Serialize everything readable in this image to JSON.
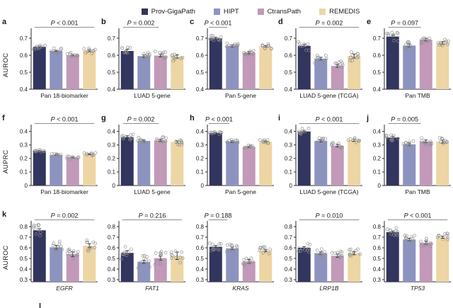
{
  "legend": {
    "items": [
      {
        "label": "Prov-GigaPath",
        "color": "#32355d"
      },
      {
        "label": "HIPT",
        "color": "#8d93bf"
      },
      {
        "label": "CtransPath",
        "color": "#c299b9"
      },
      {
        "label": "REMEDIS",
        "color": "#edd5a4"
      }
    ]
  },
  "colors": {
    "series": [
      "#32355d",
      "#8d93bf",
      "#c299b9",
      "#edd5a4"
    ],
    "axis": "#2a2a2a",
    "p_line": "#8f8f8f",
    "error_bar": "#3a3a3a",
    "scatter": "#8f8f8f"
  },
  "series": [
    "Prov-GigaPath",
    "HIPT",
    "CtransPath",
    "REMEDIS"
  ],
  "footer": {
    "partial_label": "l"
  },
  "chart_data": [
    {
      "type": "bar",
      "letter": "a",
      "ylabel": "AUROC",
      "category": "Pan 18-biomarker",
      "category_italic": false,
      "p": "P < 0.001",
      "p_span": [
        0.05,
        0.95
      ],
      "ylim": [
        0.4,
        0.75
      ],
      "yticks": [
        "0.4",
        "0.5",
        "0.6",
        "0.7"
      ],
      "values": [
        0.65,
        0.625,
        0.6,
        0.627
      ],
      "errors": [
        0.005,
        0.004,
        0.004,
        0.006
      ],
      "spread": 0.035,
      "n_points": 9
    },
    {
      "type": "bar",
      "letter": "b",
      "ylabel": "",
      "category": "LUAD 5-gene",
      "category_italic": false,
      "p": "P = 0.002",
      "p_span": [
        0.06,
        0.6
      ],
      "ylim": [
        0.4,
        0.75
      ],
      "yticks": [
        "0.4",
        "0.5",
        "0.6",
        "0.7"
      ],
      "values": [
        0.625,
        0.595,
        0.598,
        0.593
      ],
      "errors": [
        0.01,
        0.007,
        0.008,
        0.01
      ],
      "spread": 0.055,
      "n_points": 9
    },
    {
      "type": "bar",
      "letter": "c",
      "ylabel": "",
      "category": "Pan 5-gene",
      "category_italic": false,
      "p": "P < 0.001",
      "p_span": [
        0.02,
        0.3
      ],
      "ylim": [
        0.4,
        0.75
      ],
      "yticks": [
        "0.4",
        "0.5",
        "0.6",
        "0.7"
      ],
      "values": [
        0.7,
        0.655,
        0.615,
        0.652
      ],
      "errors": [
        0.006,
        0.006,
        0.007,
        0.005
      ],
      "spread": 0.03,
      "n_points": 10
    },
    {
      "type": "bar",
      "letter": "d",
      "ylabel": "",
      "category": "LUAD 5-gene (TCGA)",
      "category_italic": false,
      "p": "P = 0.002",
      "p_span": [
        0.05,
        0.95
      ],
      "ylim": [
        0.4,
        0.75
      ],
      "yticks": [
        "0.4",
        "0.5",
        "0.6",
        "0.7"
      ],
      "values": [
        0.655,
        0.58,
        0.537,
        0.595
      ],
      "errors": [
        0.008,
        0.008,
        0.009,
        0.012
      ],
      "spread": 0.055,
      "n_points": 9
    },
    {
      "type": "bar",
      "letter": "e",
      "ylabel": "",
      "category": "Pan TMB",
      "category_italic": false,
      "p": "P = 0.097",
      "p_span": [
        0.06,
        0.55
      ],
      "ylim": [
        0.4,
        0.75
      ],
      "yticks": [
        "0.4",
        "0.5",
        "0.6",
        "0.7"
      ],
      "values": [
        0.71,
        0.657,
        0.692,
        0.672
      ],
      "errors": [
        0.008,
        0.009,
        0.008,
        0.008
      ],
      "spread": 0.055,
      "n_points": 10
    },
    {
      "type": "bar",
      "letter": "f",
      "ylabel": "AUPRC",
      "category": "Pan 18-biomarker",
      "category_italic": false,
      "p": "P < 0.001",
      "p_span": [
        0.05,
        0.95
      ],
      "ylim": [
        0,
        0.44
      ],
      "yticks": [
        "0",
        "0.1",
        "0.2",
        "0.3",
        "0.4"
      ],
      "values": [
        0.255,
        0.226,
        0.206,
        0.232
      ],
      "errors": [
        0.004,
        0.004,
        0.004,
        0.004
      ],
      "spread": 0.02,
      "n_points": 9
    },
    {
      "type": "bar",
      "letter": "g",
      "ylabel": "",
      "category": "LUAD 5-gene",
      "category_italic": false,
      "p": "P = 0.002",
      "p_span": [
        0.06,
        0.6
      ],
      "ylim": [
        0,
        0.44
      ],
      "yticks": [
        "0",
        "0.1",
        "0.2",
        "0.3",
        "0.4"
      ],
      "values": [
        0.358,
        0.33,
        0.333,
        0.322
      ],
      "errors": [
        0.01,
        0.007,
        0.008,
        0.008
      ],
      "spread": 0.05,
      "n_points": 9
    },
    {
      "type": "bar",
      "letter": "h",
      "ylabel": "",
      "category": "Pan 5-gene",
      "category_italic": false,
      "p": "P < 0.001",
      "p_span": [
        0.02,
        0.33
      ],
      "ylim": [
        0,
        0.44
      ],
      "yticks": [
        "0",
        "0.1",
        "0.2",
        "0.3",
        "0.4"
      ],
      "values": [
        0.388,
        0.325,
        0.285,
        0.325
      ],
      "errors": [
        0.005,
        0.006,
        0.005,
        0.005
      ],
      "spread": 0.025,
      "n_points": 9
    },
    {
      "type": "bar",
      "letter": "i",
      "ylabel": "",
      "category": "LUAD 5-gene (TCGA)",
      "category_italic": false,
      "p": "P < 0.001",
      "p_span": [
        0.05,
        0.95
      ],
      "ylim": [
        0,
        0.44
      ],
      "yticks": [
        "0",
        "0.1",
        "0.2",
        "0.3",
        "0.4"
      ],
      "values": [
        0.4,
        0.33,
        0.295,
        0.335
      ],
      "errors": [
        0.008,
        0.008,
        0.01,
        0.008
      ],
      "spread": 0.045,
      "n_points": 9
    },
    {
      "type": "bar",
      "letter": "j",
      "ylabel": "",
      "category": "Pan TMB",
      "category_italic": false,
      "p": "P = 0.005",
      "p_span": [
        0.06,
        0.55
      ],
      "ylim": [
        0,
        0.44
      ],
      "yticks": [
        "0",
        "0.1",
        "0.2",
        "0.3",
        "0.4"
      ],
      "values": [
        0.355,
        0.305,
        0.327,
        0.325
      ],
      "errors": [
        0.01,
        0.01,
        0.01,
        0.012
      ],
      "spread": 0.06,
      "n_points": 10
    },
    {
      "type": "bar",
      "letter": "k",
      "ylabel": "AUROC",
      "category": "EGFR",
      "category_italic": true,
      "p": "P = 0.002",
      "p_span": [
        0.05,
        0.95
      ],
      "ylim": [
        0.28,
        0.84
      ],
      "yticks": [
        "0.3",
        "0.4",
        "0.5",
        "0.6",
        "0.7",
        "0.8"
      ],
      "values": [
        0.765,
        0.605,
        0.54,
        0.62
      ],
      "errors": [
        0.015,
        0.018,
        0.022,
        0.018
      ],
      "spread": 0.11,
      "n_points": 10
    },
    {
      "type": "bar",
      "letter": "",
      "ylabel": "",
      "category": "FAT1",
      "category_italic": true,
      "p": "P = 0.216",
      "p_span": [
        0.05,
        0.95
      ],
      "ylim": [
        0.28,
        0.84
      ],
      "yticks": [
        "0.3",
        "0.4",
        "0.5",
        "0.6",
        "0.7",
        "0.8"
      ],
      "values": [
        0.552,
        0.468,
        0.503,
        0.525
      ],
      "errors": [
        0.022,
        0.015,
        0.02,
        0.035
      ],
      "spread": 0.13,
      "n_points": 10
    },
    {
      "type": "bar",
      "letter": "",
      "ylabel": "",
      "category": "KRAS",
      "category_italic": true,
      "p": "P = 0.188",
      "p_span": [
        0.02,
        0.3
      ],
      "ylim": [
        0.28,
        0.84
      ],
      "yticks": [
        "0.3",
        "0.4",
        "0.5",
        "0.6",
        "0.7",
        "0.8"
      ],
      "values": [
        0.61,
        0.595,
        0.472,
        0.575
      ],
      "errors": [
        0.012,
        0.012,
        0.018,
        0.01
      ],
      "spread": 0.08,
      "n_points": 10
    },
    {
      "type": "bar",
      "letter": "",
      "ylabel": "",
      "category": "LRP1B",
      "category_italic": true,
      "p": "P = 0.010",
      "p_span": [
        0.05,
        0.95
      ],
      "ylim": [
        0.28,
        0.84
      ],
      "yticks": [
        "0.3",
        "0.4",
        "0.5",
        "0.6",
        "0.7",
        "0.8"
      ],
      "values": [
        0.6,
        0.55,
        0.525,
        0.55
      ],
      "errors": [
        0.012,
        0.012,
        0.015,
        0.015
      ],
      "spread": 0.09,
      "n_points": 10
    },
    {
      "type": "bar",
      "letter": "",
      "ylabel": "",
      "category": "TP53",
      "category_italic": true,
      "p": "P < 0.001",
      "p_span": [
        0.05,
        0.95
      ],
      "ylim": [
        0.28,
        0.84
      ],
      "yticks": [
        "0.3",
        "0.4",
        "0.5",
        "0.6",
        "0.7",
        "0.8"
      ],
      "values": [
        0.748,
        0.678,
        0.648,
        0.7
      ],
      "errors": [
        0.01,
        0.012,
        0.015,
        0.01
      ],
      "spread": 0.08,
      "n_points": 10
    }
  ]
}
